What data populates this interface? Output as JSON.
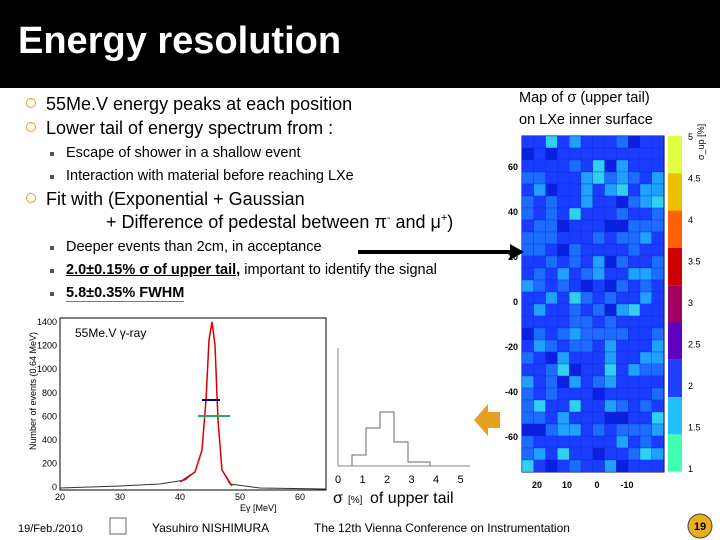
{
  "header": {
    "title": "Energy resolution"
  },
  "bullets": [
    {
      "text": "55Me.V energy peaks at each position"
    },
    {
      "text": "Lower tail of energy spectrum from :",
      "sub": [
        "Escape of shower in a shallow event",
        "Interaction with material before reaching LXe"
      ]
    },
    {
      "text": "Fit with (Exponential + Gaussian",
      "line2": [
        "+ Difference of pedestal between π",
        "-",
        " and μ",
        "+",
        ")"
      ],
      "sub": [
        "Deeper events than 2cm, in acceptance"
      ],
      "sub_underlined": [
        "2.0±0.15% σ of upper tail,",
        " important to identify the signal"
      ],
      "sub_fwhm": "5.8±0.35% FWHM"
    }
  ],
  "map": {
    "caption_line1": "Map of σ (upper tail)",
    "caption_line2": "on LXe inner surface",
    "left_ticks": [
      "60",
      "40",
      "20",
      "0",
      "-20",
      "-40",
      "-60"
    ],
    "bottom_ticks": [
      "20",
      "10",
      "0",
      "-10"
    ],
    "scale_ticks": [
      "5",
      "4.5",
      "4",
      "3.5",
      "3",
      "2.5",
      "2",
      "1.5",
      "1"
    ],
    "scale_title": "σ_up [%]"
  },
  "spectrum": {
    "label": "55Me.V γ-ray",
    "ylabel": "Number of events (0.64 MeV)",
    "xlabel": "Eγ [MeV]",
    "yticks": [
      "1400",
      "1200",
      "1000",
      "800",
      "600",
      "400",
      "200",
      "0"
    ],
    "xticks": [
      "20",
      "30",
      "40",
      "50",
      "60"
    ]
  },
  "histogram": {
    "xticks": [
      "0",
      "1",
      "2",
      "3",
      "4",
      "5"
    ],
    "xlabel_symbol": "σ",
    "xlabel_unit": "[%]",
    "xlabel_text": "of upper tail"
  },
  "footer": {
    "date": "19/Feb./2010",
    "author": "Yasuhiro NISHIMURA",
    "conference": "The 12th Vienna Conference on Instrumentation",
    "page": "19"
  }
}
